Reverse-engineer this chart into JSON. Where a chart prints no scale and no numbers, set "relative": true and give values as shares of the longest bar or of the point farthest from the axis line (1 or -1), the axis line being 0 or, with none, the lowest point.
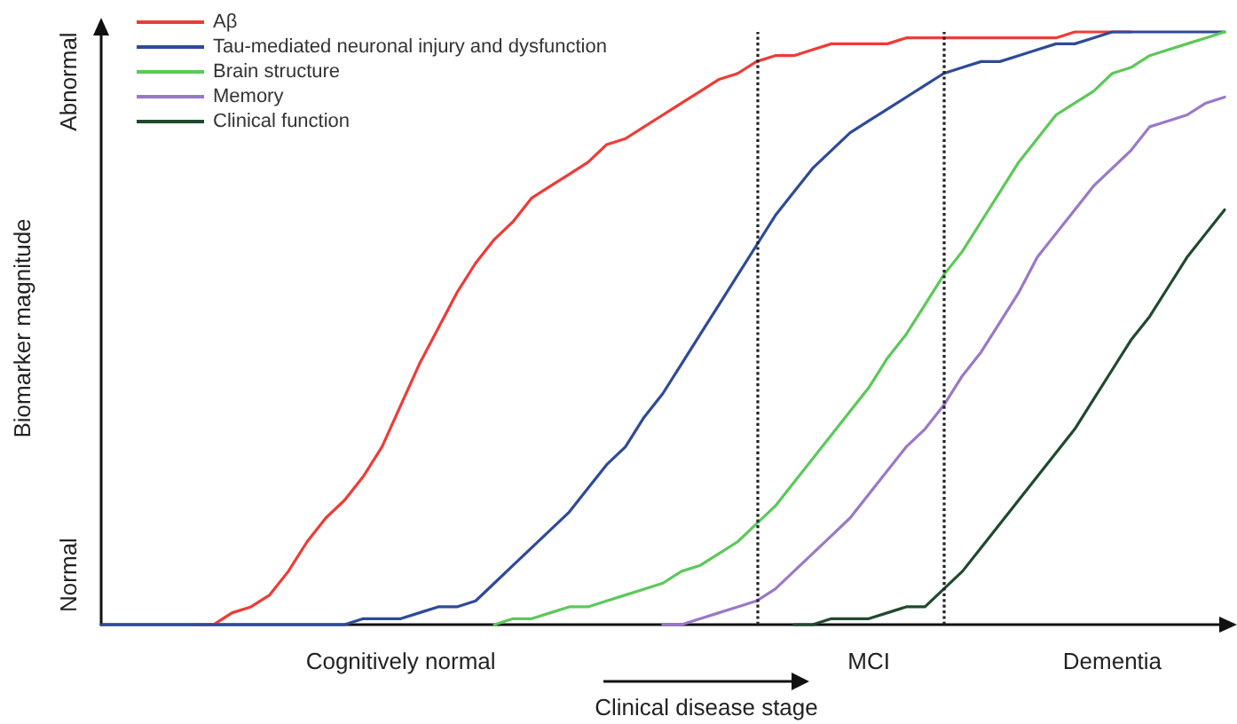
{
  "chart_data": {
    "type": "line",
    "relative": true,
    "ylabel": "Biomarker magnitude",
    "xlabel": "Clinical disease stage",
    "tick_labels": "x",
    "grid": false,
    "legend": "top left",
    "marker": "none",
    "line_style": "solid",
    "categories": [
      null,
      null,
      null,
      null,
      null,
      null,
      null,
      null,
      null,
      null,
      null,
      null,
      null,
      null,
      null,
      null,
      "Cognitively normal",
      null,
      null,
      null,
      null,
      null,
      null,
      null,
      null,
      null,
      null,
      null,
      null,
      null,
      null,
      null,
      null,
      null,
      null,
      null,
      null,
      null,
      null,
      null,
      null,
      "MCI",
      null,
      null,
      null,
      null,
      null,
      null,
      null,
      null,
      null,
      null,
      null,
      null,
      "Dementia",
      null,
      null,
      null,
      null,
      null,
      null
    ],
    "annotations": [
      "Normal",
      "Abnormal"
    ],
    "series": [
      {
        "name": "Aβ",
        "color": "#ef3b36",
        "values": [
          null,
          null,
          null,
          null,
          null,
          0,
          0,
          0.02,
          0.03,
          0.05,
          0.09,
          0.14,
          0.18,
          0.21,
          0.25,
          0.3,
          0.37,
          0.44,
          0.5,
          0.56,
          0.61,
          0.65,
          0.68,
          0.72,
          0.74,
          0.76,
          0.78,
          0.81,
          0.82,
          0.84,
          0.86,
          0.88,
          0.9,
          0.92,
          0.93,
          0.95,
          0.96,
          0.96,
          0.97,
          0.98,
          0.98,
          0.98,
          0.98,
          0.99,
          0.99,
          0.99,
          0.99,
          0.99,
          0.99,
          0.99,
          0.99,
          0.99,
          1,
          1,
          1,
          1,
          null,
          null,
          null,
          null,
          null
        ]
      },
      {
        "name": "Tau-mediated neuronal injury and dysfunction",
        "color": "#2e4a9a",
        "values": [
          0,
          0,
          0,
          0,
          0,
          0,
          0,
          0,
          0,
          0,
          0,
          0,
          0,
          0,
          0.01,
          0.01,
          0.01,
          0.02,
          0.03,
          0.03,
          0.04,
          0.07,
          0.1,
          0.13,
          0.16,
          0.19,
          0.23,
          0.27,
          0.3,
          0.35,
          0.39,
          0.44,
          0.49,
          0.54,
          0.59,
          0.64,
          0.69,
          0.73,
          0.77,
          0.8,
          0.83,
          0.85,
          0.87,
          0.89,
          0.91,
          0.93,
          0.94,
          0.95,
          0.95,
          0.96,
          0.97,
          0.98,
          0.98,
          0.99,
          1,
          1,
          1,
          1,
          1,
          1,
          1
        ]
      },
      {
        "name": "Brain structure",
        "color": "#5cc85a",
        "values": [
          null,
          null,
          null,
          null,
          null,
          null,
          null,
          null,
          null,
          null,
          null,
          null,
          null,
          null,
          null,
          null,
          null,
          null,
          null,
          null,
          null,
          0,
          0.01,
          0.01,
          0.02,
          0.03,
          0.03,
          0.04,
          0.05,
          0.06,
          0.07,
          0.09,
          0.1,
          0.12,
          0.14,
          0.17,
          0.2,
          0.24,
          0.28,
          0.32,
          0.36,
          0.4,
          0.45,
          0.49,
          0.54,
          0.59,
          0.63,
          0.68,
          0.73,
          0.78,
          0.82,
          0.86,
          0.88,
          0.9,
          0.93,
          0.94,
          0.96,
          0.97,
          0.98,
          0.99,
          1
        ]
      },
      {
        "name": "Memory",
        "color": "#9a78c8",
        "values": [
          null,
          null,
          null,
          null,
          null,
          null,
          null,
          null,
          null,
          null,
          null,
          null,
          null,
          null,
          null,
          null,
          null,
          null,
          null,
          null,
          null,
          null,
          null,
          null,
          null,
          null,
          null,
          null,
          null,
          null,
          0,
          0,
          0.01,
          0.02,
          0.03,
          0.04,
          0.06,
          0.09,
          0.12,
          0.15,
          0.18,
          0.22,
          0.26,
          0.3,
          0.33,
          0.37,
          0.42,
          0.46,
          0.51,
          0.56,
          0.62,
          0.66,
          0.7,
          0.74,
          0.77,
          0.8,
          0.84,
          0.85,
          0.86,
          0.88,
          0.89
        ]
      },
      {
        "name": "Clinical function",
        "color": "#1f4a2e",
        "values": [
          null,
          null,
          null,
          null,
          null,
          null,
          null,
          null,
          null,
          null,
          null,
          null,
          null,
          null,
          null,
          null,
          null,
          null,
          null,
          null,
          null,
          null,
          null,
          null,
          null,
          null,
          null,
          null,
          null,
          null,
          null,
          null,
          null,
          null,
          null,
          null,
          null,
          0,
          0,
          0.01,
          0.01,
          0.01,
          0.02,
          0.03,
          0.03,
          0.06,
          0.09,
          0.13,
          0.17,
          0.21,
          0.25,
          0.29,
          0.33,
          0.38,
          0.43,
          0.48,
          0.52,
          0.57,
          0.62,
          0.66,
          0.7
        ]
      }
    ]
  }
}
